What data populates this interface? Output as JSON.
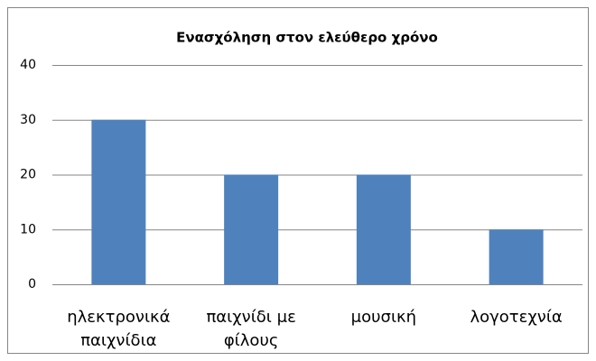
{
  "chart_data": {
    "type": "bar",
    "title": "Ενασχόληση στον ελεύθερο χρόνο",
    "categories": [
      "ηλεκτρονικά παιχνίδια",
      "παιχνίδι με φίλους",
      "μουσική",
      "λογοτεχνία"
    ],
    "values": [
      30,
      20,
      20,
      10
    ],
    "color": "#4f81bd",
    "ylim": [
      0,
      40
    ],
    "yticks": [
      0,
      10,
      20,
      30,
      40
    ],
    "grid": true
  }
}
